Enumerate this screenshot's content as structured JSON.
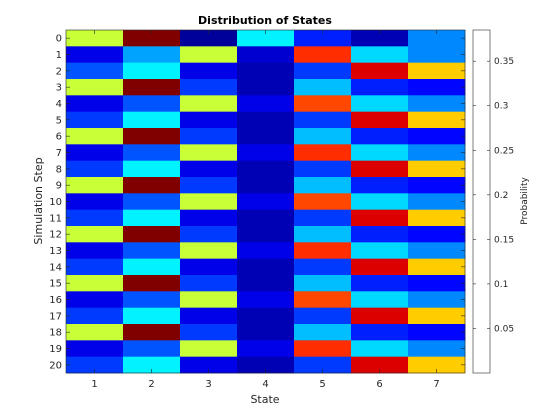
{
  "chart_data": {
    "type": "heatmap",
    "title": "Distribution of States",
    "xlabel": "State",
    "ylabel": "Simulation Step",
    "colorbar_label": "Probability",
    "colormap": "jet",
    "clim": [
      0.0,
      0.385
    ],
    "colorbar_ticks": [
      0.05,
      0.1,
      0.15,
      0.2,
      0.25,
      0.3,
      0.35
    ],
    "x_categories": [
      "1",
      "2",
      "3",
      "4",
      "5",
      "6",
      "7"
    ],
    "y_categories": [
      "0",
      "1",
      "2",
      "3",
      "4",
      "5",
      "6",
      "7",
      "8",
      "9",
      "10",
      "11",
      "12",
      "13",
      "14",
      "15",
      "16",
      "17",
      "18",
      "19",
      "20"
    ],
    "values": [
      [
        0.22,
        0.385,
        0.01,
        0.14,
        0.06,
        0.02,
        0.1
      ],
      [
        0.04,
        0.11,
        0.22,
        0.03,
        0.32,
        0.13,
        0.1
      ],
      [
        0.08,
        0.14,
        0.04,
        0.02,
        0.07,
        0.35,
        0.26
      ],
      [
        0.22,
        0.385,
        0.07,
        0.02,
        0.12,
        0.06,
        0.05
      ],
      [
        0.04,
        0.08,
        0.22,
        0.04,
        0.31,
        0.13,
        0.1
      ],
      [
        0.07,
        0.14,
        0.04,
        0.02,
        0.07,
        0.35,
        0.26
      ],
      [
        0.22,
        0.385,
        0.07,
        0.02,
        0.12,
        0.06,
        0.05
      ],
      [
        0.04,
        0.08,
        0.22,
        0.04,
        0.32,
        0.13,
        0.1
      ],
      [
        0.07,
        0.14,
        0.04,
        0.02,
        0.07,
        0.35,
        0.26
      ],
      [
        0.22,
        0.385,
        0.07,
        0.02,
        0.12,
        0.06,
        0.05
      ],
      [
        0.04,
        0.08,
        0.22,
        0.04,
        0.31,
        0.13,
        0.1
      ],
      [
        0.07,
        0.14,
        0.04,
        0.02,
        0.07,
        0.35,
        0.26
      ],
      [
        0.22,
        0.385,
        0.07,
        0.02,
        0.12,
        0.06,
        0.05
      ],
      [
        0.04,
        0.08,
        0.22,
        0.04,
        0.32,
        0.13,
        0.1
      ],
      [
        0.07,
        0.14,
        0.04,
        0.02,
        0.07,
        0.35,
        0.26
      ],
      [
        0.22,
        0.385,
        0.07,
        0.02,
        0.12,
        0.06,
        0.05
      ],
      [
        0.04,
        0.08,
        0.22,
        0.04,
        0.31,
        0.13,
        0.1
      ],
      [
        0.07,
        0.14,
        0.04,
        0.02,
        0.07,
        0.35,
        0.26
      ],
      [
        0.22,
        0.385,
        0.07,
        0.02,
        0.12,
        0.06,
        0.05
      ],
      [
        0.04,
        0.08,
        0.22,
        0.04,
        0.32,
        0.13,
        0.1
      ],
      [
        0.07,
        0.14,
        0.04,
        0.02,
        0.07,
        0.35,
        0.26
      ]
    ]
  }
}
